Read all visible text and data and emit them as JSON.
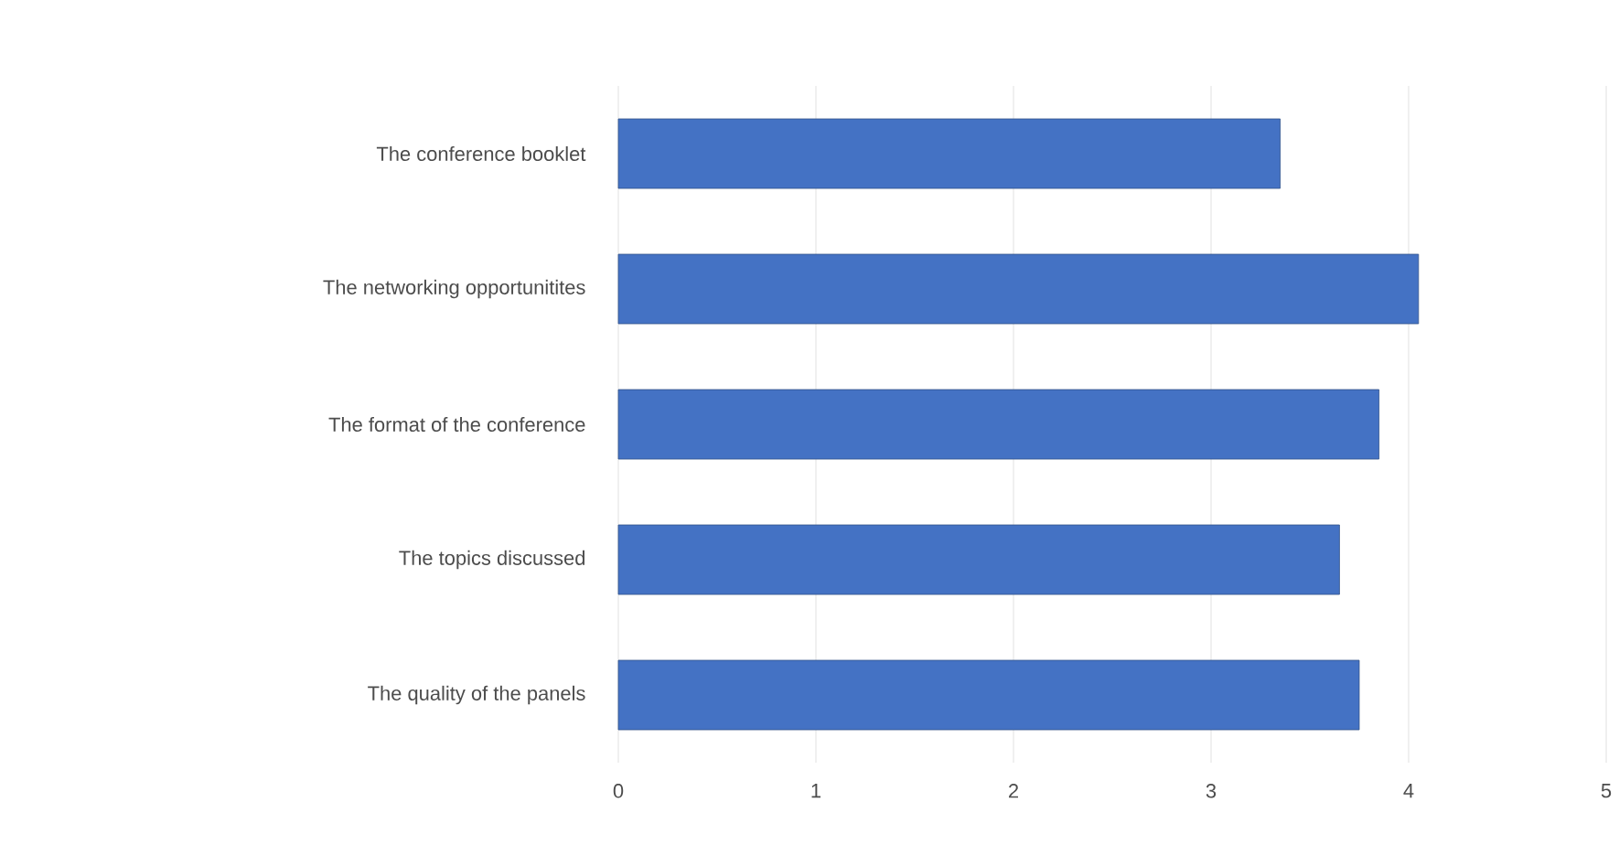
{
  "chart_data": {
    "type": "bar",
    "orientation": "horizontal",
    "categories": [
      "The conference booklet",
      "The networking opportunitites",
      "The format of the conference",
      "The topics discussed",
      "The quality of the panels"
    ],
    "values": [
      3.35,
      4.05,
      3.85,
      3.65,
      3.75
    ],
    "color": "#4472c4",
    "xlim": [
      0,
      5
    ],
    "xticks": [
      0,
      1,
      2,
      3,
      4,
      5
    ],
    "grid": "x"
  }
}
